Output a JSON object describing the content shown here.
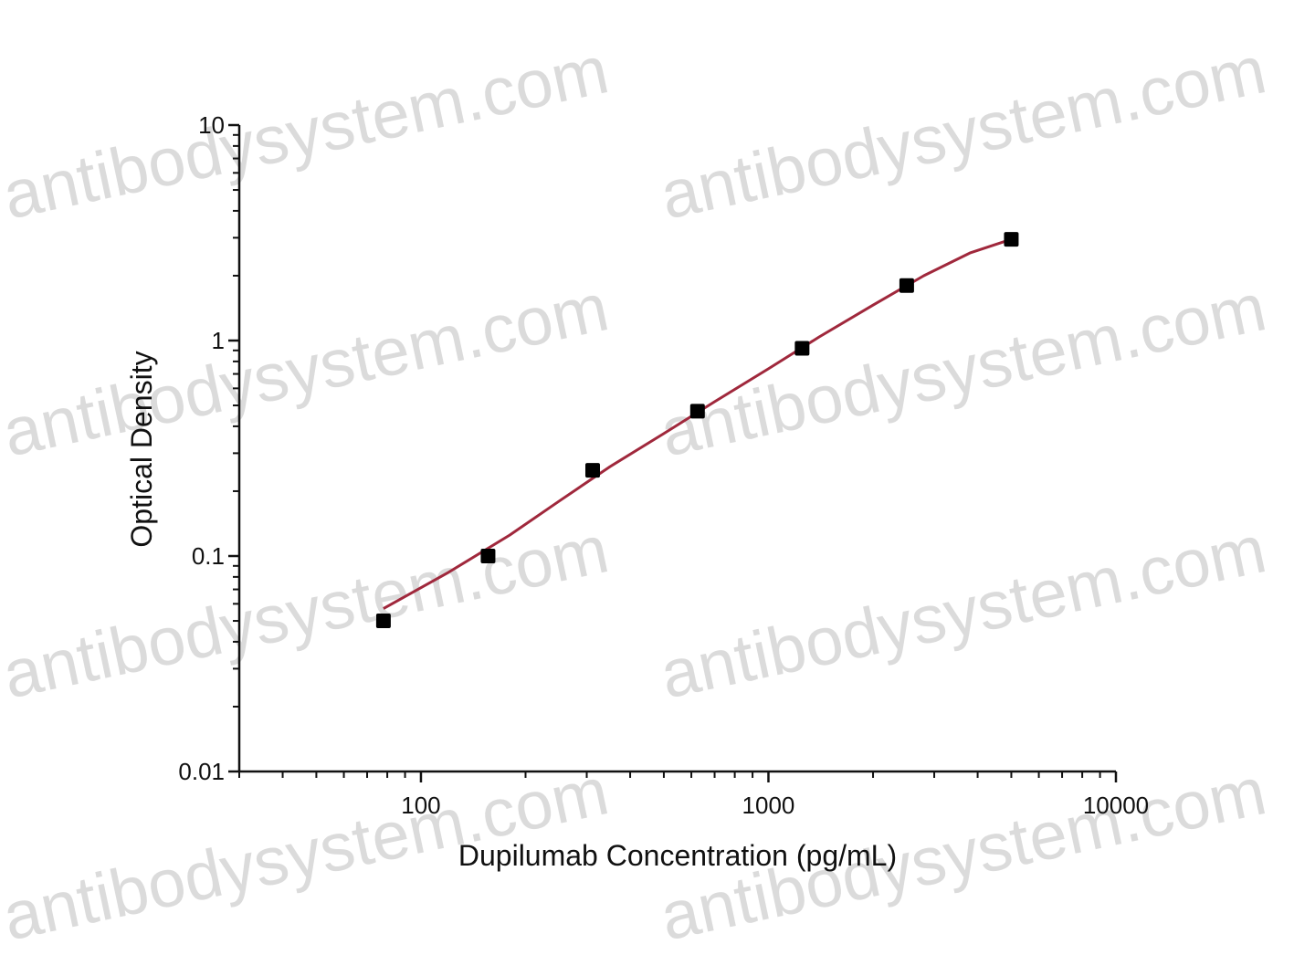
{
  "chart_data": {
    "type": "scatter",
    "title": "",
    "xlabel": "Dupilumab Concentration (pg/mL)",
    "ylabel": "Optical Density",
    "x_scale": "log",
    "y_scale": "log",
    "xlim": [
      30,
      10000
    ],
    "ylim": [
      0.01,
      10
    ],
    "x_tick_values": [
      100,
      1000,
      10000
    ],
    "x_tick_labels": [
      "100",
      "1000",
      "10000"
    ],
    "y_tick_values": [
      0.01,
      0.1,
      1,
      10
    ],
    "y_tick_labels": [
      "0.01",
      "0.1",
      "1",
      "10"
    ],
    "grid": false,
    "legend": "none",
    "series": [
      {
        "marker": "square",
        "color": "#000000",
        "x": [
          78,
          156,
          312,
          625,
          1250,
          2500,
          5000
        ],
        "y": [
          0.05,
          0.1,
          0.25,
          0.47,
          0.92,
          1.8,
          2.95
        ]
      }
    ],
    "fit": {
      "color": "#a0283c",
      "x": [
        78,
        120,
        180,
        250,
        350,
        500,
        700,
        1000,
        1400,
        2000,
        2800,
        3800,
        5000
      ],
      "y": [
        0.057,
        0.084,
        0.125,
        0.18,
        0.26,
        0.37,
        0.52,
        0.74,
        1.04,
        1.46,
        2.0,
        2.55,
        2.95
      ]
    }
  },
  "watermark": {
    "text": "antibodysystem.com",
    "color": "#bdbdbd"
  }
}
